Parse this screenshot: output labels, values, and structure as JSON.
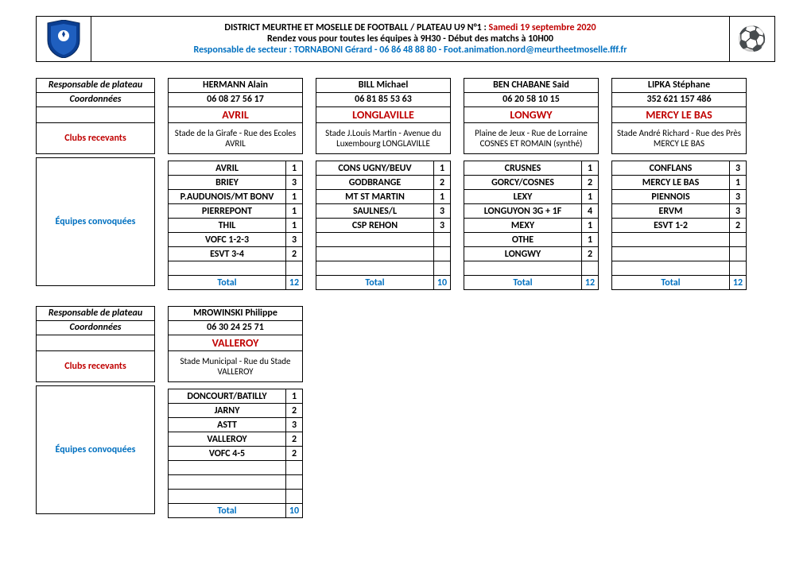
{
  "header": {
    "title_left": "DISTRICT MEURTHE ET MOSELLE DE FOOTBALL / PLATEAU U9 N°1 :",
    "title_date": "Samedi 19 septembre 2020",
    "line2": "Rendez vous pour toutes les équipes à 9H30 - Début des matchs à 10H00",
    "line3": "Responsable de secteur : TORNABONI Gérard - 06 86 48 88 80 - Foot.animation.nord@meurtheetmoselle.fff.fr"
  },
  "labels": {
    "resp": "Responsable de plateau",
    "coord": "Coordonnées",
    "clubs": "Clubs recevants",
    "equipes": "Équipes convoquées",
    "total": "Total"
  },
  "blocks": [
    {
      "resp": "HERMANN Alain",
      "coord": "06 08 27 56 17",
      "loc": "AVRIL",
      "venue": "Stade de la Girafe - Rue des Ecoles AVRIL",
      "teams": [
        [
          "AVRIL",
          "1"
        ],
        [
          "BRIEY",
          "3"
        ],
        [
          "P.AUDUNOIS/MT BONV",
          "1"
        ],
        [
          "PIERREPONT",
          "1"
        ],
        [
          "THIL",
          "1"
        ],
        [
          "VOFC 1-2-3",
          "3"
        ],
        [
          "ESVT 3-4",
          "2"
        ],
        [
          "",
          ""
        ]
      ],
      "total": "12"
    },
    {
      "resp": "BILL Michael",
      "coord": "06 81 85 53 63",
      "loc": "LONGLAVILLE",
      "venue": "Stade J.Louis Martin - Avenue du Luxembourg LONGLAVILLE",
      "teams": [
        [
          "CONS UGNY/BEUV",
          "1"
        ],
        [
          "GODBRANGE",
          "2"
        ],
        [
          "MT ST MARTIN",
          "1"
        ],
        [
          "SAULNES/L",
          "3"
        ],
        [
          "CSP REHON",
          "3"
        ],
        [
          "",
          ""
        ],
        [
          "",
          ""
        ],
        [
          "",
          ""
        ]
      ],
      "total": "10"
    },
    {
      "resp": "BEN CHABANE Said",
      "coord": "06 20 58 10 15",
      "loc": "LONGWY",
      "venue": "Plaine de Jeux - Rue de Lorraine COSNES ET ROMAIN (synthé)",
      "teams": [
        [
          "CRUSNES",
          "1"
        ],
        [
          "GORCY/COSNES",
          "2"
        ],
        [
          "LEXY",
          "1"
        ],
        [
          "LONGUYON 3G + 1F",
          "4"
        ],
        [
          "MEXY",
          "1"
        ],
        [
          "OTHE",
          "1"
        ],
        [
          "LONGWY",
          "2"
        ],
        [
          "",
          ""
        ]
      ],
      "total": "12"
    },
    {
      "resp": "LIPKA Stéphane",
      "coord": "352 621 157 486",
      "loc": "MERCY LE BAS",
      "venue": "Stade André Richard - Rue des Près MERCY LE BAS",
      "teams": [
        [
          "CONFLANS",
          "3"
        ],
        [
          "MERCY LE BAS",
          "1"
        ],
        [
          "PIENNOIS",
          "3"
        ],
        [
          "ERVM",
          "3"
        ],
        [
          "ESVT 1-2",
          "2"
        ],
        [
          "",
          ""
        ],
        [
          "",
          ""
        ],
        [
          "",
          ""
        ]
      ],
      "total": "12"
    }
  ],
  "blocks2": [
    {
      "resp": "MROWINSKI Philippe",
      "coord": "06 30 24 25 71",
      "loc": "VALLEROY",
      "venue": "Stade Municipal - Rue du Stade VALLEROY",
      "teams": [
        [
          "DONCOURT/BATILLY",
          "1"
        ],
        [
          "JARNY",
          "2"
        ],
        [
          "ASTT",
          "3"
        ],
        [
          "VALLEROY",
          "2"
        ],
        [
          "VOFC 4-5",
          "2"
        ],
        [
          "",
          ""
        ],
        [
          "",
          ""
        ],
        [
          "",
          ""
        ]
      ],
      "total": "10"
    }
  ]
}
